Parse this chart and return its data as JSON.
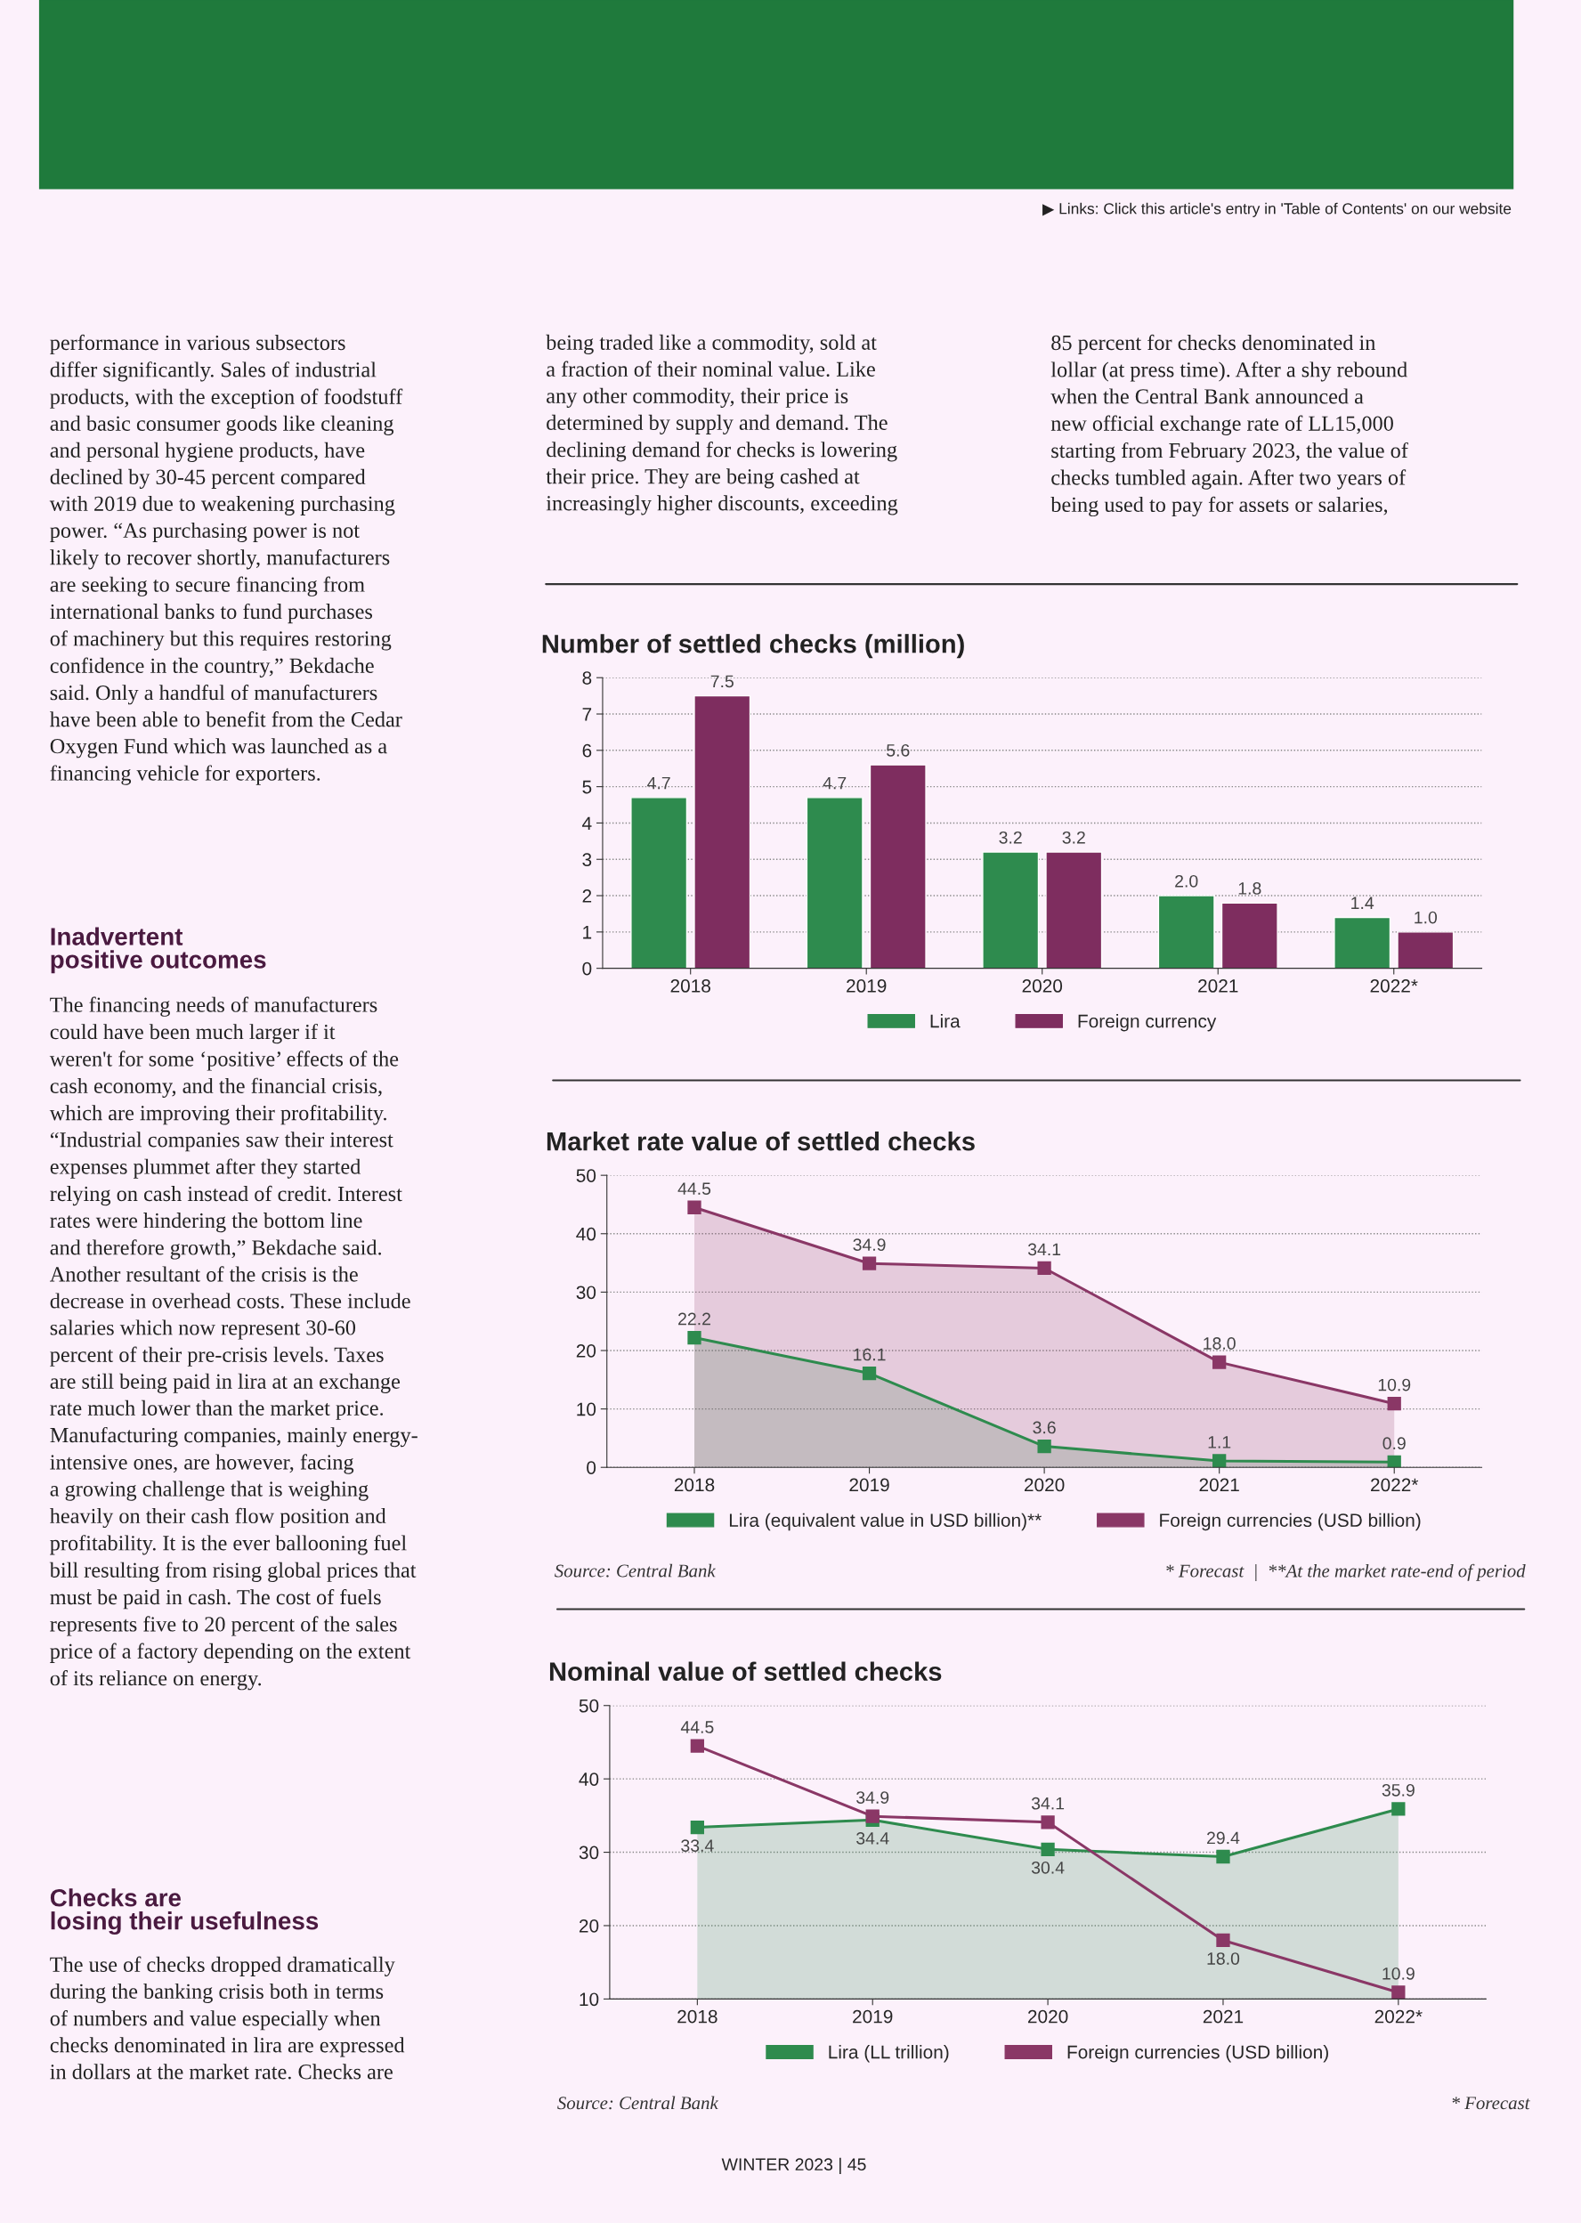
{
  "chart_data": [
    {
      "type": "other",
      "annotations": [
        "▶ Links: Click this article's entry in 'Table of Contents' on our website",
        "performance in various subsectors\ndiffer significantly. Sales of industrial\nproducts, with the exception of foodstuff\nand basic consumer goods like cleaning\nand personal hygiene products, have\ndeclined by 30-45 percent compared\nwith 2019 due to weakening purchasing\npower. “As purchasing power is not\nlikely to recover shortly, manufacturers\nare seeking to secure financing from\ninternational banks to fund purchases\nof machinery but this requires restoring\nconfidence in the country,” Bekdache\nsaid. Only a handful of manufacturers\nhave been able to benefit from the Cedar\nOxygen Fund which was launched as a\nfinancing vehicle for exporters.",
        "Inadvertent\npositive outcomes",
        "The financing needs of manufacturers\ncould have been much larger if it\nweren't for some ‘positive’ effects of the\ncash economy, and the financial crisis,\nwhich are improving their profitability.\n“Industrial companies saw their interest\nexpenses plummet after they started\nrelying on cash instead of credit. Interest\nrates were hindering the bottom line\nand therefore growth,” Bekdache said.\nAnother resultant of the crisis is the\ndecrease in overhead costs. These include\nsalaries which now represent 30-60\npercent of their pre-crisis levels. Taxes\nare still being paid in lira at an exchange\nrate much lower than the market price.\nManufacturing companies, mainly energy-\nintensive ones, are however, facing\na growing challenge that is weighing\nheavily on their cash flow position and\nprofitability. It is the ever ballooning fuel\nbill resulting from rising global prices that\nmust be paid in cash. The cost of fuels\nrepresents five to 20 percent of the sales\nprice of a factory depending on the extent\nof its reliance on energy.",
        "Checks are\nlosing their usefulness",
        "The use of checks dropped dramatically\nduring the banking crisis both in terms\nof numbers and value especially when\nchecks denominated in lira are expressed\nin dollars at the market rate. Checks are",
        "being traded like a commodity, sold at\na fraction of their nominal value. Like\nany other commodity, their price is\ndetermined by supply and demand. The\ndeclining demand for checks is lowering\ntheir price. They are being cashed at\nincreasingly higher discounts, exceeding",
        "85 percent for checks denominated in\nlollar (at press time). After a shy rebound\nwhen the Central Bank announced a\nnew official exchange rate of LL15,000\nstarting from February 2023, the value of\nchecks tumbled again. After two years of\nbeing used to pay for assets or salaries,",
        "WINTER 2023 | 45"
      ]
    },
    {
      "type": "bar",
      "title": "Number of settled checks (million)",
      "categories": [
        "2018",
        "2019",
        "2020",
        "2021",
        "2022*"
      ],
      "series": [
        {
          "name": "Lira",
          "color": "#2e8b4e",
          "values": [
            4.7,
            4.7,
            3.2,
            2.0,
            1.4
          ],
          "value_labels": [
            "4.7",
            "4.7",
            "3.2",
            "2.0",
            "1.4"
          ]
        },
        {
          "name": "Foreign currency",
          "color": "#7e2d5f",
          "values": [
            7.5,
            5.6,
            3.2,
            1.8,
            1.0
          ],
          "value_labels": [
            "7.5",
            "5.6",
            "3.2",
            "1.8",
            "1.0"
          ]
        }
      ],
      "ylim": [
        0,
        8
      ],
      "yticks": [
        0,
        1,
        2,
        3,
        4,
        5,
        6,
        7,
        8
      ],
      "grid": "y",
      "legend": "bottom"
    },
    {
      "type": "area",
      "title": "Market rate value of settled checks",
      "categories": [
        "2018",
        "2019",
        "2020",
        "2021",
        "2022*"
      ],
      "series": [
        {
          "name": "Lira (equivalent value in USD billion)**",
          "color": "#2e8b4e",
          "type": "area",
          "values": [
            22.2,
            16.1,
            3.6,
            1.1,
            0.9
          ],
          "value_labels": [
            "22.2",
            "16.1",
            "3.6",
            "1.1",
            "0.9"
          ]
        },
        {
          "name": "Foreign currencies (USD billion)",
          "color": "#8a3766",
          "type": "area",
          "values": [
            44.5,
            34.9,
            34.1,
            18.0,
            10.9
          ],
          "value_labels": [
            "44.5",
            "34.9",
            "34.1",
            "18.0",
            "10.9"
          ]
        }
      ],
      "ylim": [
        0,
        50
      ],
      "yticks": [
        0,
        10,
        20,
        30,
        40,
        50
      ],
      "grid": "y",
      "legend": "bottom",
      "marker": "square",
      "annotations": [
        "Source: Central Bank",
        "* Forecast  |  **At the market rate-end of period"
      ]
    },
    {
      "type": "line",
      "title": "Nominal value of settled checks",
      "categories": [
        "2018",
        "2019",
        "2020",
        "2021",
        "2022*"
      ],
      "series": [
        {
          "name": "Lira (LL trillion)",
          "color": "#2e8b4e",
          "type": "area",
          "values": [
            33.4,
            34.4,
            30.4,
            29.4,
            35.9
          ],
          "value_labels": [
            "33.4",
            "34.4",
            "30.4",
            "29.4",
            "35.9"
          ]
        },
        {
          "name": "Foreign currencies (USD billion)",
          "color": "#8a3766",
          "type": "line",
          "values": [
            44.5,
            34.9,
            34.1,
            18.0,
            10.9
          ],
          "value_labels": [
            "44.5",
            "34.9",
            "34.1",
            "18.0",
            "10.9"
          ]
        }
      ],
      "ylim": [
        10,
        50
      ],
      "yticks": [
        10,
        20,
        30,
        40,
        50
      ],
      "grid": "y",
      "legend": "bottom",
      "marker": "square",
      "annotations": [
        "Source: Central Bank",
        "* Forecast"
      ]
    }
  ]
}
